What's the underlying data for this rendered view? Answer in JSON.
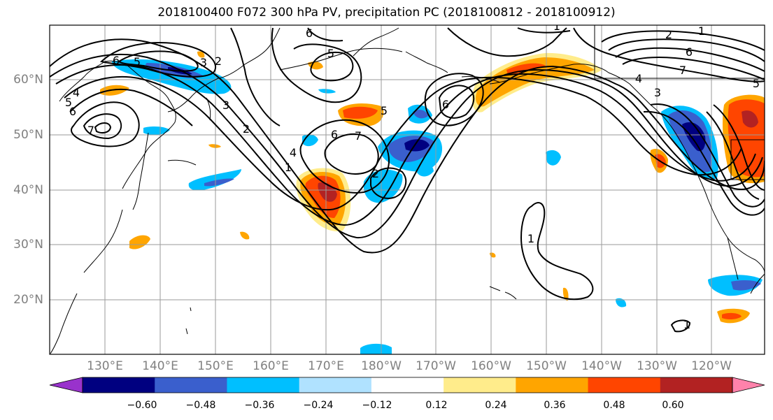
{
  "title": "2018100400 F072 300 hPa PV, precipitation PC (2018100812 - 2018100912)",
  "lat_labels": [
    "60°N",
    "50°N",
    "40°N",
    "30°N",
    "20°N"
  ],
  "lon_labels": [
    "130°E",
    "140°E",
    "150°E",
    "160°E",
    "170°E",
    "180°W",
    "170°W",
    "160°W",
    "150°W",
    "140°W",
    "130°W",
    "120°W"
  ],
  "colorbar": {
    "ticks": [
      "−0.60",
      "−0.48",
      "−0.36",
      "−0.24",
      "−0.12",
      "0.12",
      "0.24",
      "0.36",
      "0.48",
      "0.60"
    ],
    "colors": [
      "#9932cc",
      "#000080",
      "#3a5fcd",
      "#00bfff",
      "#b0e2ff",
      "#ffffff",
      "#ffec8b",
      "#ffa500",
      "#ff4500",
      "#b22222",
      "#ff82ab"
    ]
  },
  "contour_labels": [
    "1",
    "2",
    "3",
    "4",
    "5",
    "6",
    "7",
    "2",
    "5",
    "5",
    "6",
    "6",
    "7",
    "2",
    "1",
    "2",
    "6",
    "7",
    "1",
    "1",
    "1",
    "5",
    "6",
    "4",
    "3",
    "2",
    "4",
    "1"
  ],
  "colors": {
    "deep_blue": "#000080",
    "mid_blue": "#3a5fcd",
    "light_blue": "#00bfff",
    "pale_blue": "#b0e2ff",
    "yellow": "#ffec8b",
    "orange": "#ffa500",
    "red_orange": "#ff4500",
    "dark_red": "#b22222"
  }
}
